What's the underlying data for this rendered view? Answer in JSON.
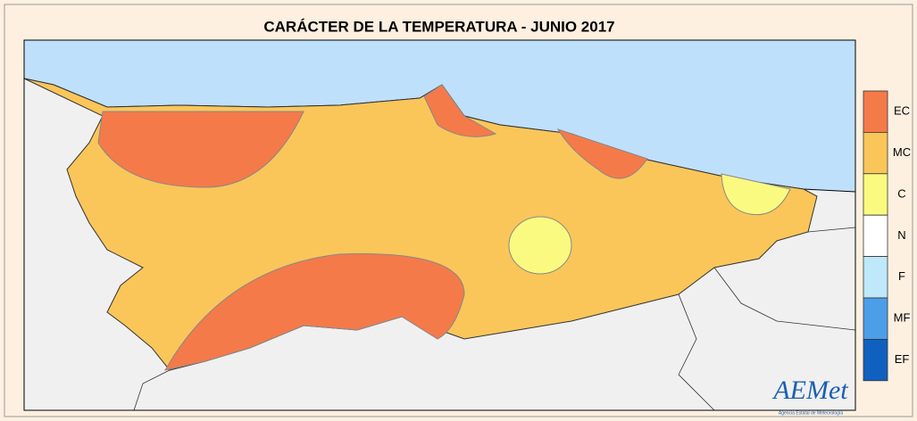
{
  "title": "CARÁCTER DE LA TEMPERATURA - JUNIO 2017",
  "legend": [
    {
      "label": "EC",
      "color": "#f47a4a"
    },
    {
      "label": "MC",
      "color": "#fac65a"
    },
    {
      "label": "C",
      "color": "#fafa80"
    },
    {
      "label": "N",
      "color": "#ffffff"
    },
    {
      "label": "F",
      "color": "#bfe8fb"
    },
    {
      "label": "MF",
      "color": "#4c9ee8"
    },
    {
      "label": "EF",
      "color": "#1060c0"
    }
  ],
  "logo": {
    "name": "AEMet",
    "subtitle": "Agencia Estatal de Meteorología"
  }
}
